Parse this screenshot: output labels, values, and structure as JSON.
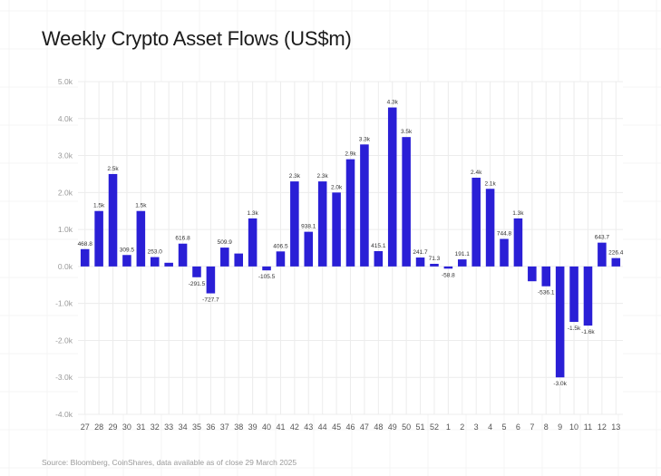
{
  "title": "Weekly Crypto Asset Flows (US$m)",
  "source": "Source: Bloomberg, CoinShares, data available as of close 29 March 2025",
  "colors": {
    "bar": "#2a1fd6",
    "grid": "#ececec",
    "bg_grid": "#f4f4f4"
  },
  "chart_data": {
    "type": "bar",
    "title": "Weekly Crypto Asset Flows (US$m)",
    "xlabel": "",
    "ylabel": "",
    "ylim": [
      -4000,
      5000
    ],
    "yticks": [
      5000,
      4000,
      3000,
      2000,
      1000,
      0,
      -1000,
      -2000,
      -3000,
      -4000
    ],
    "ytick_labels": [
      "5.0k",
      "4.0k",
      "3.0k",
      "2.0k",
      "1.0k",
      "0.0k",
      "-1.0k",
      "-2.0k",
      "-3.0k",
      "-4.0k"
    ],
    "grid": true,
    "categories": [
      "27",
      "28",
      "29",
      "30",
      "31",
      "32",
      "33",
      "34",
      "35",
      "36",
      "37",
      "38",
      "39",
      "40",
      "41",
      "42",
      "43",
      "44",
      "45",
      "46",
      "47",
      "48",
      "49",
      "50",
      "51",
      "52",
      "1",
      "2",
      "3",
      "4",
      "5",
      "6",
      "7",
      "8",
      "9",
      "10",
      "11",
      "12",
      "13"
    ],
    "values": [
      468.8,
      1500,
      2500,
      309.5,
      1500,
      253.0,
      100,
      616.8,
      -291.5,
      -727.7,
      509.9,
      350,
      1300,
      -105.5,
      406.5,
      2300,
      938.1,
      2300,
      2000,
      2900,
      3300,
      415.1,
      4300,
      3500,
      241.7,
      71.3,
      -58.8,
      191.1,
      2400,
      2100,
      744.8,
      1300,
      -400,
      -536.1,
      -3000,
      -1500,
      -1600,
      643.7,
      226.4
    ],
    "labels": [
      "468.8",
      "1.5k",
      "2.5k",
      "309.5",
      "1.5k",
      "253.0",
      "",
      "616.8",
      "-291.5",
      "-727.7",
      "509.9",
      "",
      "1.3k",
      "-105.5",
      "406.5",
      "2.3k",
      "938.1",
      "2.3k",
      "2.0k",
      "2.9k",
      "3.3k",
      "415.1",
      "4.3k",
      "3.5k",
      "241.7",
      "71.3",
      "-58.8",
      "191.1",
      "2.4k",
      "2.1k",
      "744.8",
      "1.3k",
      "",
      "-536.1",
      "-3.0k",
      "-1.5k",
      "-1.6k",
      "643.7",
      "226.4"
    ]
  }
}
